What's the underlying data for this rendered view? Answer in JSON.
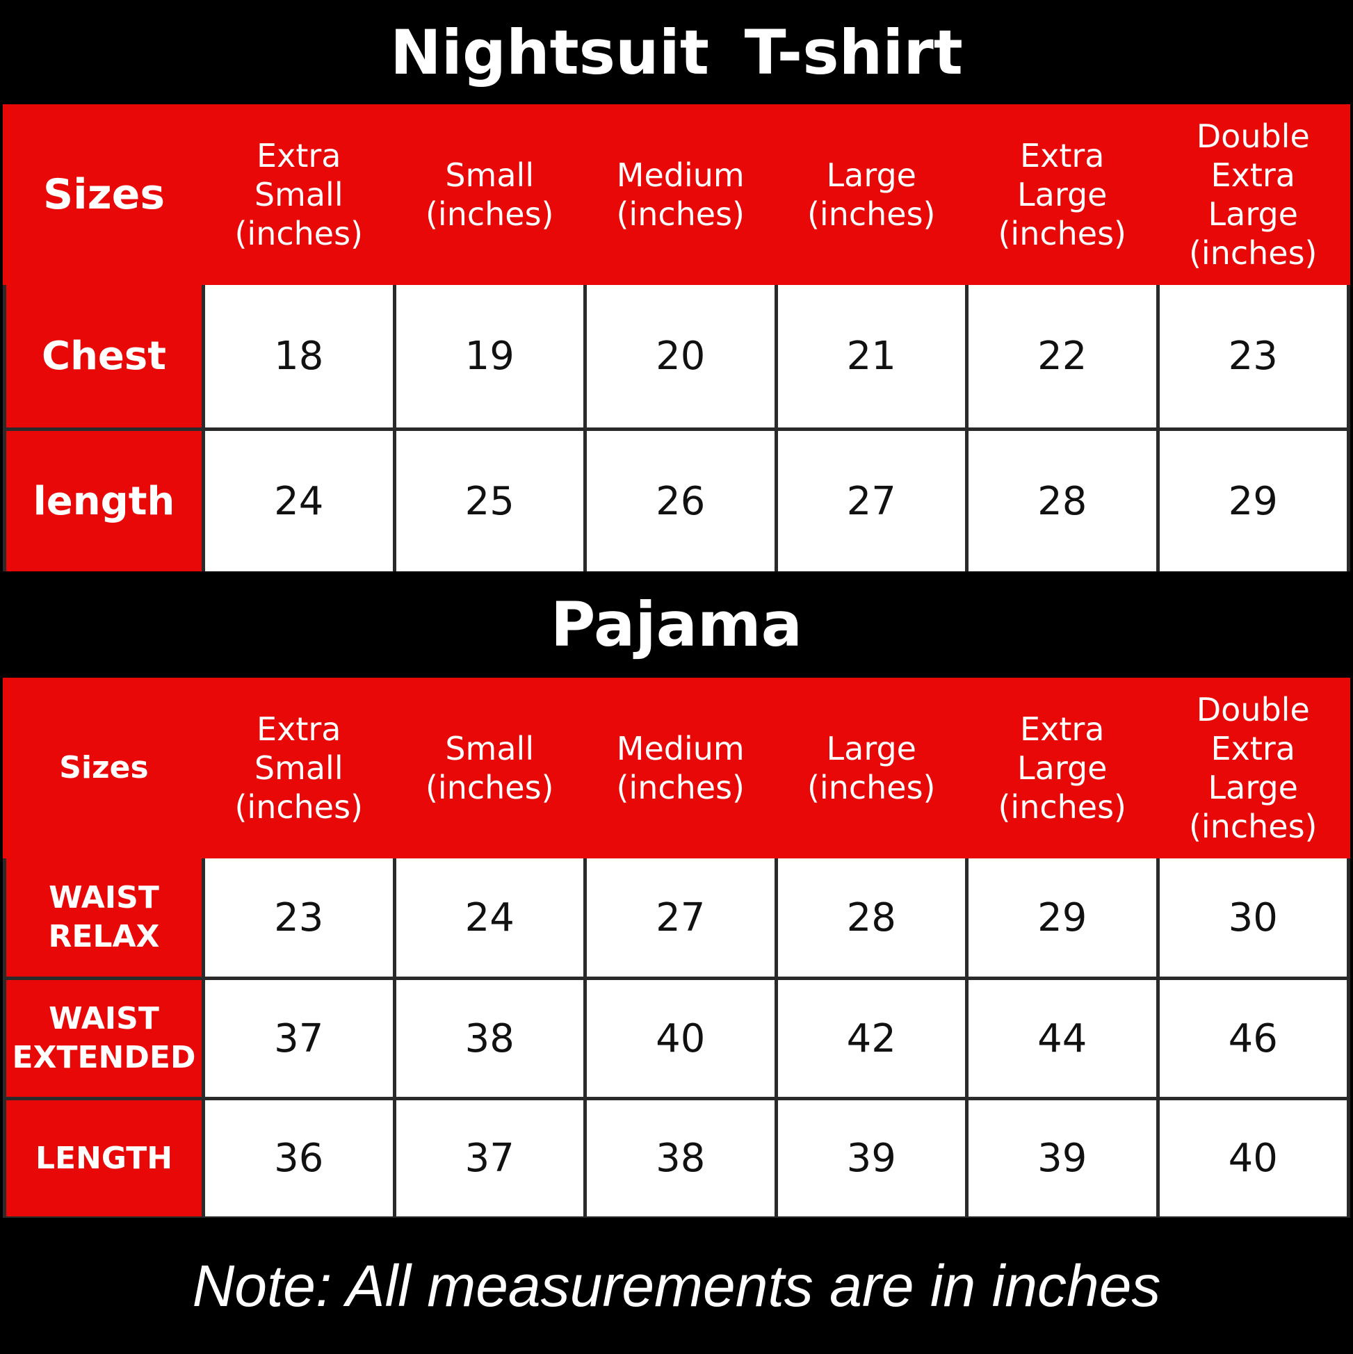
{
  "tshirt": {
    "title": "Nightsuit  T-shirt",
    "header_label": "Sizes",
    "columns": [
      "Extra\nSmall\n(inches)",
      "Small\n(inches)",
      "Medium\n(inches)",
      "Large\n(inches)",
      "Extra\nLarge\n(inches)",
      "Double\nExtra\nLarge\n(inches)"
    ],
    "rows": [
      {
        "label": "Chest",
        "values": [
          "18",
          "19",
          "20",
          "21",
          "22",
          "23"
        ]
      },
      {
        "label": "length",
        "values": [
          "24",
          "25",
          "26",
          "27",
          "28",
          "29"
        ]
      }
    ]
  },
  "pajama": {
    "title": "Pajama",
    "header_label": "Sizes",
    "columns": [
      "Extra\nSmall\n(inches)",
      "Small\n(inches)",
      "Medium\n(inches)",
      "Large\n(inches)",
      "Extra\nLarge\n(inches)",
      "Double\nExtra\nLarge\n(inches)"
    ],
    "rows": [
      {
        "label": "WAIST\nRELAX",
        "values": [
          "23",
          "24",
          "27",
          "28",
          "29",
          "30"
        ]
      },
      {
        "label": "WAIST\nEXTENDED",
        "values": [
          "37",
          "38",
          "40",
          "42",
          "44",
          "46"
        ]
      },
      {
        "label": "LENGTH",
        "values": [
          "36",
          "37",
          "38",
          "39",
          "39",
          "40"
        ]
      }
    ]
  },
  "note": "Note: All measurements are in inches",
  "colors": {
    "header_red": "#e80808",
    "background": "#000000",
    "cell": "#ffffff"
  }
}
